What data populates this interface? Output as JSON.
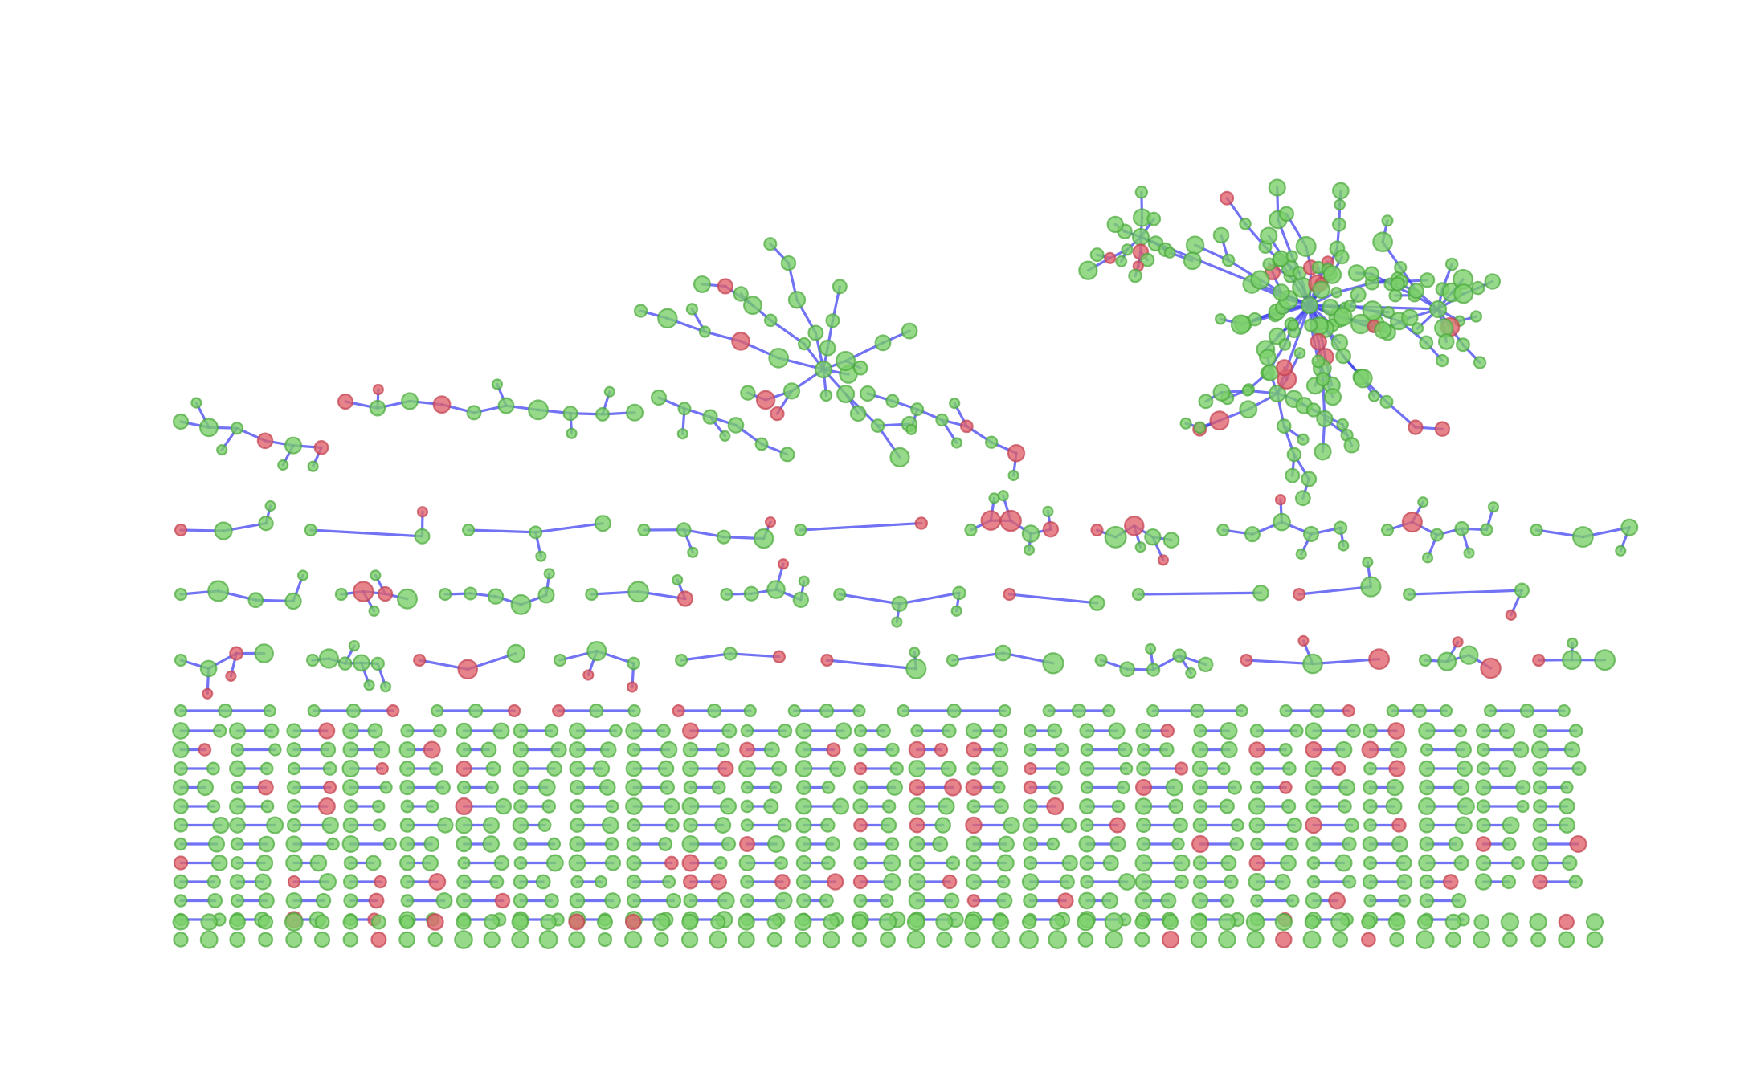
{
  "colors": {
    "background": "#ffffff",
    "edge": "#3b3bf0",
    "node_default_fill": "#7ccf6a",
    "node_default_stroke": "#4aa83c",
    "node_highlight_fill": "#e0646e",
    "node_highlight_stroke": "#c2404e"
  },
  "legend": "none",
  "axes": "none",
  "components": [
    {
      "id": "large-cluster",
      "approx_nodes": 180
    },
    {
      "id": "star-cluster",
      "approx_nodes": 45
    },
    {
      "id": "medium-chains",
      "approx_nodes": 60
    },
    {
      "id": "small-trees",
      "approx_nodes": 120
    },
    {
      "id": "node-pairs",
      "approx_count": 420
    },
    {
      "id": "isolated-nodes",
      "approx_count": 52
    }
  ]
}
